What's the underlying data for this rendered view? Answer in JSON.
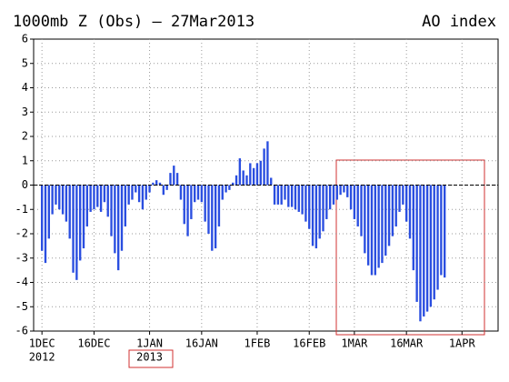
{
  "chart_data": {
    "type": "bar",
    "title": "1000mb Z (Obs) – 27Mar2013",
    "subtitle": "AO index",
    "x": [
      0,
      1,
      2,
      3,
      4,
      5,
      6,
      7,
      8,
      9,
      10,
      11,
      12,
      13,
      14,
      15,
      16,
      17,
      18,
      19,
      20,
      21,
      22,
      23,
      24,
      25,
      26,
      27,
      28,
      29,
      30,
      31,
      32,
      33,
      34,
      35,
      36,
      37,
      38,
      39,
      40,
      41,
      42,
      43,
      44,
      45,
      46,
      47,
      48,
      49,
      50,
      51,
      52,
      53,
      54,
      55,
      56,
      57,
      58,
      59,
      60,
      61,
      62,
      63,
      64,
      65,
      66,
      67,
      68,
      69,
      70,
      71,
      72,
      73,
      74,
      75,
      76,
      77,
      78,
      79,
      80,
      81,
      82,
      83,
      84,
      85,
      86,
      87,
      88,
      89,
      90,
      91,
      92,
      93,
      94,
      95,
      96,
      97,
      98,
      99,
      100,
      101,
      102,
      103,
      104,
      105,
      106,
      107,
      108,
      109,
      110,
      111,
      112,
      113,
      114,
      115,
      116
    ],
    "values": [
      -2.7,
      -3.2,
      -2.2,
      -1.2,
      -0.8,
      -1.0,
      -1.2,
      -1.5,
      -2.2,
      -3.6,
      -3.9,
      -3.1,
      -2.6,
      -1.7,
      -1.1,
      -1.0,
      -0.9,
      -1.1,
      -0.7,
      -1.3,
      -2.1,
      -2.8,
      -3.5,
      -2.7,
      -1.7,
      -0.8,
      -0.6,
      -0.3,
      -0.7,
      -1.0,
      -0.6,
      -0.3,
      0.1,
      0.2,
      0.1,
      -0.4,
      -0.2,
      0.5,
      0.8,
      0.5,
      -0.6,
      -1.6,
      -2.1,
      -1.4,
      -0.7,
      -0.6,
      -0.7,
      -1.5,
      -2.0,
      -2.7,
      -2.6,
      -1.7,
      -0.6,
      -0.3,
      -0.2,
      0.1,
      0.4,
      1.1,
      0.6,
      0.4,
      0.9,
      0.7,
      0.9,
      1.0,
      1.5,
      1.8,
      0.3,
      -0.8,
      -0.8,
      -0.8,
      -0.6,
      -0.9,
      -0.9,
      -1.0,
      -1.1,
      -1.2,
      -1.5,
      -1.8,
      -2.5,
      -2.6,
      -2.2,
      -1.9,
      -1.4,
      -1.0,
      -0.8,
      -0.6,
      -0.4,
      -0.3,
      -0.5,
      -1.0,
      -1.4,
      -1.7,
      -2.1,
      -2.8,
      -3.3,
      -3.7,
      -3.7,
      -3.4,
      -3.2,
      -2.9,
      -2.5,
      -2.1,
      -1.7,
      -1.1,
      -0.8,
      -1.5,
      -2.2,
      -3.5,
      -4.8,
      -5.6,
      -5.4,
      -5.2,
      -5.0,
      -4.7,
      -4.3,
      -3.7,
      -3.8
    ],
    "color": "#2a4ee0",
    "xlim": [
      -2.4,
      131.4
    ],
    "xticks": [
      {
        "value": 0,
        "label": "1DEC"
      },
      {
        "value": 15,
        "label": "16DEC"
      },
      {
        "value": 31,
        "label": "1JAN"
      },
      {
        "value": 46,
        "label": "16JAN"
      },
      {
        "value": 62,
        "label": "1FEB"
      },
      {
        "value": 77,
        "label": "16FEB"
      },
      {
        "value": 90,
        "label": "1MAR"
      },
      {
        "value": 105,
        "label": "16MAR"
      },
      {
        "value": 121,
        "label": "1APR"
      }
    ],
    "year_labels": [
      {
        "value": 0,
        "label": "2012"
      },
      {
        "value": 31,
        "label": "2013"
      }
    ],
    "ylim": [
      -6,
      6
    ],
    "yticks": [
      -6,
      -5,
      -4,
      -3,
      -2,
      -1,
      0,
      1,
      2,
      3,
      4,
      5,
      6
    ],
    "grid": true
  }
}
